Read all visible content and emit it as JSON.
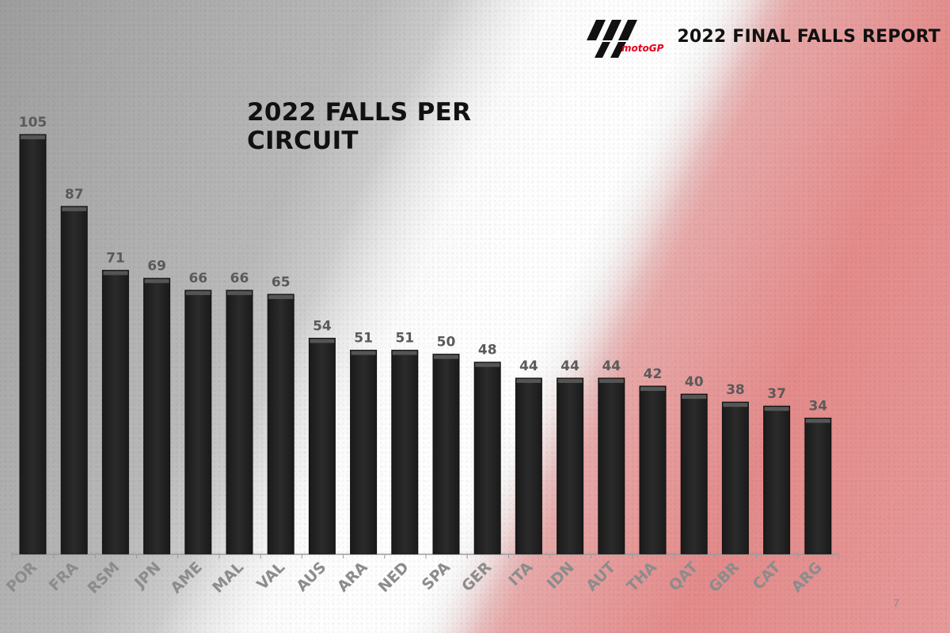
{
  "header": {
    "logo_text": "motoGP",
    "report_title": "2022 FINAL FALLS REPORT"
  },
  "chart_title": "2022 FALLS PER CIRCUIT",
  "page_number": "7",
  "colors": {
    "bar": "#2b2b2b",
    "value_label": "#5a5a5a",
    "axis_label": "#8c8c8c",
    "brand_red": "#e3001b"
  },
  "chart_data": {
    "type": "bar",
    "title": "2022 FALLS PER CIRCUIT",
    "xlabel": "",
    "ylabel": "",
    "ylim": [
      0,
      105
    ],
    "grid": false,
    "categories": [
      "POR",
      "FRA",
      "RSM",
      "JPN",
      "AME",
      "MAL",
      "VAL",
      "AUS",
      "ARA",
      "NED",
      "SPA",
      "GER",
      "ITA",
      "IDN",
      "AUT",
      "THA",
      "QAT",
      "GBR",
      "CAT",
      "ARG"
    ],
    "values": [
      105,
      87,
      71,
      69,
      66,
      66,
      65,
      54,
      51,
      51,
      50,
      48,
      44,
      44,
      44,
      42,
      40,
      38,
      37,
      34
    ],
    "value_labels": [
      "105",
      "87",
      "71",
      "69",
      "66",
      "66",
      "65",
      "54",
      "51",
      "51",
      "50",
      "48",
      "44",
      "44",
      "44",
      "42",
      "40",
      "38",
      "37",
      "34"
    ]
  }
}
